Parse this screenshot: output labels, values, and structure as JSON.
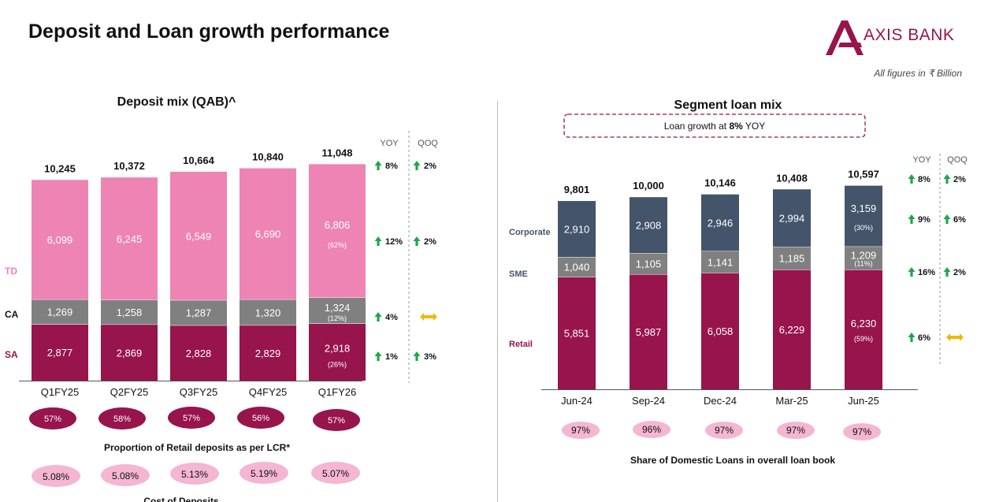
{
  "header": {
    "title": "Deposit and Loan growth performance",
    "brand": "AXIS BANK",
    "note": "All figures in ₹ Billion"
  },
  "chart_data": [
    {
      "type": "bar",
      "stacked": true,
      "title": "Deposit mix (QAB)^",
      "categories": [
        "Q1FY25",
        "Q2FY25",
        "Q3FY25",
        "Q4FY25",
        "Q1FY26"
      ],
      "totals": [
        "10,245",
        "10,372",
        "10,664",
        "10,840",
        "11,048"
      ],
      "series": [
        {
          "name": "SA",
          "values": [
            2877,
            2869,
            2828,
            2829,
            2918
          ],
          "labels": [
            "2,877",
            "2,869",
            "2,828",
            "2,829",
            "2,918"
          ],
          "share": "(26%)",
          "color": "#97144d"
        },
        {
          "name": "CA",
          "values": [
            1269,
            1258,
            1287,
            1320,
            1324
          ],
          "labels": [
            "1,269",
            "1,258",
            "1,287",
            "1,320",
            "1,324"
          ],
          "share": "(12%)",
          "color": "#808080"
        },
        {
          "name": "TD",
          "values": [
            6099,
            6245,
            6549,
            6690,
            6806
          ],
          "labels": [
            "6,099",
            "6,245",
            "6,549",
            "6,690",
            "6,806"
          ],
          "share": "(62%)",
          "color": "#ee84b4"
        }
      ],
      "growth_headers": {
        "yoy": "YOY",
        "qoq": "QOQ"
      },
      "growth": [
        {
          "row": "total",
          "yoy": "8%",
          "qoq": "2%",
          "qoq_dir": "up"
        },
        {
          "row": "TD",
          "yoy": "12%",
          "qoq": "2%",
          "qoq_dir": "up"
        },
        {
          "row": "CA",
          "yoy": "4%",
          "qoq": "",
          "qoq_dir": "flat"
        },
        {
          "row": "SA",
          "yoy": "1%",
          "qoq": "3%",
          "qoq_dir": "up"
        }
      ],
      "retail_share": {
        "label": "Proportion of Retail deposits as per LCR*",
        "values": [
          "57%",
          "58%",
          "57%",
          "56%",
          "57%"
        ]
      },
      "cost_of_deposits": {
        "label": "Cost of Deposits",
        "values": [
          "5.08%",
          "5.08%",
          "5.13%",
          "5.19%",
          "5.07%"
        ]
      }
    },
    {
      "type": "bar",
      "stacked": true,
      "title": "Segment loan mix",
      "subtitle": "Loan growth at 8% YOY",
      "subtitle_parts": [
        "Loan growth at ",
        "8%",
        " YOY"
      ],
      "categories": [
        "Jun-24",
        "Sep-24",
        "Dec-24",
        "Mar-25",
        "Jun-25"
      ],
      "totals": [
        "9,801",
        "10,000",
        "10,146",
        "10,408",
        "10,597"
      ],
      "series": [
        {
          "name": "Retail",
          "values": [
            5851,
            5987,
            6058,
            6229,
            6230
          ],
          "labels": [
            "5,851",
            "5,987",
            "6,058",
            "6,229",
            "6,230"
          ],
          "share": "(59%)",
          "color": "#97144d"
        },
        {
          "name": "SME",
          "values": [
            1040,
            1105,
            1141,
            1185,
            1209
          ],
          "labels": [
            "1,040",
            "1,105",
            "1,141",
            "1,185",
            "1,209"
          ],
          "share": "(11%)",
          "color": "#808080"
        },
        {
          "name": "Corporate",
          "values": [
            2910,
            2908,
            2946,
            2994,
            3159
          ],
          "labels": [
            "2,910",
            "2,908",
            "2,946",
            "2,994",
            "3,159"
          ],
          "share": "(30%)",
          "color": "#44546a"
        }
      ],
      "growth_headers": {
        "yoy": "YOY",
        "qoq": "QOQ"
      },
      "growth": [
        {
          "row": "total",
          "yoy": "8%",
          "qoq": "2%",
          "qoq_dir": "up"
        },
        {
          "row": "Corporate",
          "yoy": "9%",
          "qoq": "6%",
          "qoq_dir": "up"
        },
        {
          "row": "SME",
          "yoy": "16%",
          "qoq": "2%",
          "qoq_dir": "up"
        },
        {
          "row": "Retail",
          "yoy": "6%",
          "qoq": "",
          "qoq_dir": "flat"
        }
      ],
      "domestic_share": {
        "label": "Share of Domestic Loans in overall loan book",
        "values": [
          "97%",
          "96%",
          "97%",
          "97%",
          "97%"
        ]
      }
    }
  ],
  "colors": {
    "brand": "#97144d",
    "arrow_up": "#1ea64a",
    "arrow_flat": "#f2b705",
    "pill_light": "#f4b6d2"
  }
}
